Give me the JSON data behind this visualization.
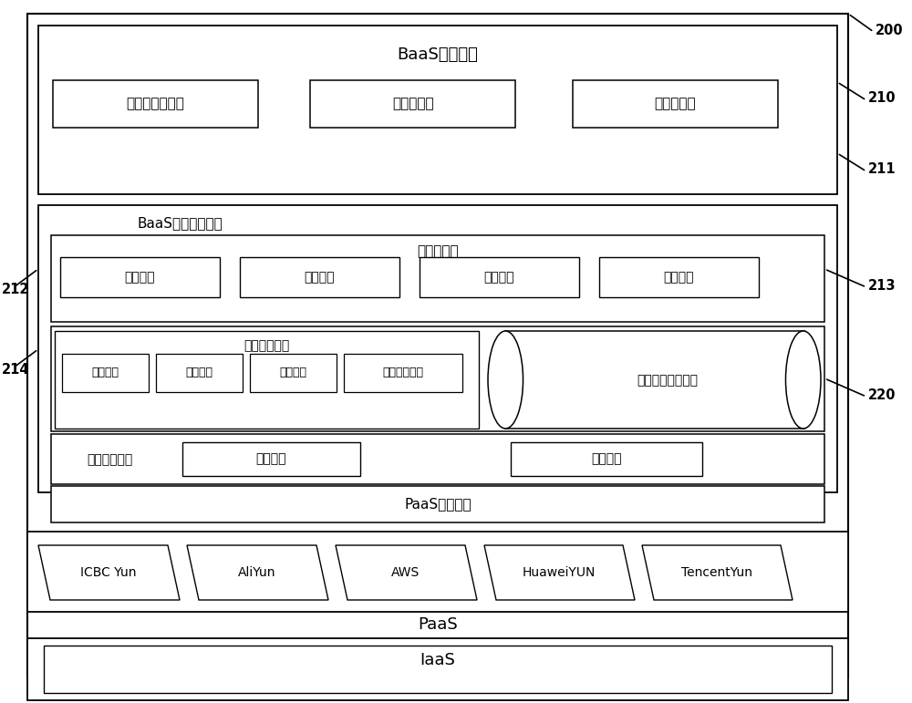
{
  "bg_color": "#ffffff",
  "border_color": "#000000",
  "font_color": "#000000",
  "labels": {
    "baas_platform": "BaaS管理平台",
    "create_blockchain": "创建区块链网络",
    "blockchain_monitor": "区块链监控",
    "blockchain_ops": "区块链运营",
    "baas_cloud_device": "BaaS适云组网装置",
    "blockchain_template": "区块链模板",
    "product_template": "产品模板",
    "user_template": "用户模板",
    "contract_template": "合约模板",
    "monitor_template": "监控模板",
    "node_mgmt": "节点管理系统",
    "container_create": "容器创建",
    "container_orchestrate": "容器编排",
    "node_auth": "节点认证",
    "network_service": "组网服务单元",
    "blockchain_image": "区块链产品镜像库",
    "container_schedule": "容器调度系统",
    "schedule_engine": "调度引擎",
    "network_engine": "组网引擎",
    "paas_adapter": "PaaS云适配器",
    "icbc_yun": "ICBC Yun",
    "ali_yun": "AliYun",
    "aws": "AWS",
    "huawei_yun": "HuaweiYUN",
    "tencent_yun": "TencentYun",
    "paas": "PaaS",
    "iaas": "IaaS"
  },
  "fs_title": 13,
  "fs_med": 11,
  "fs_sm": 10,
  "fs_ref": 10.5
}
